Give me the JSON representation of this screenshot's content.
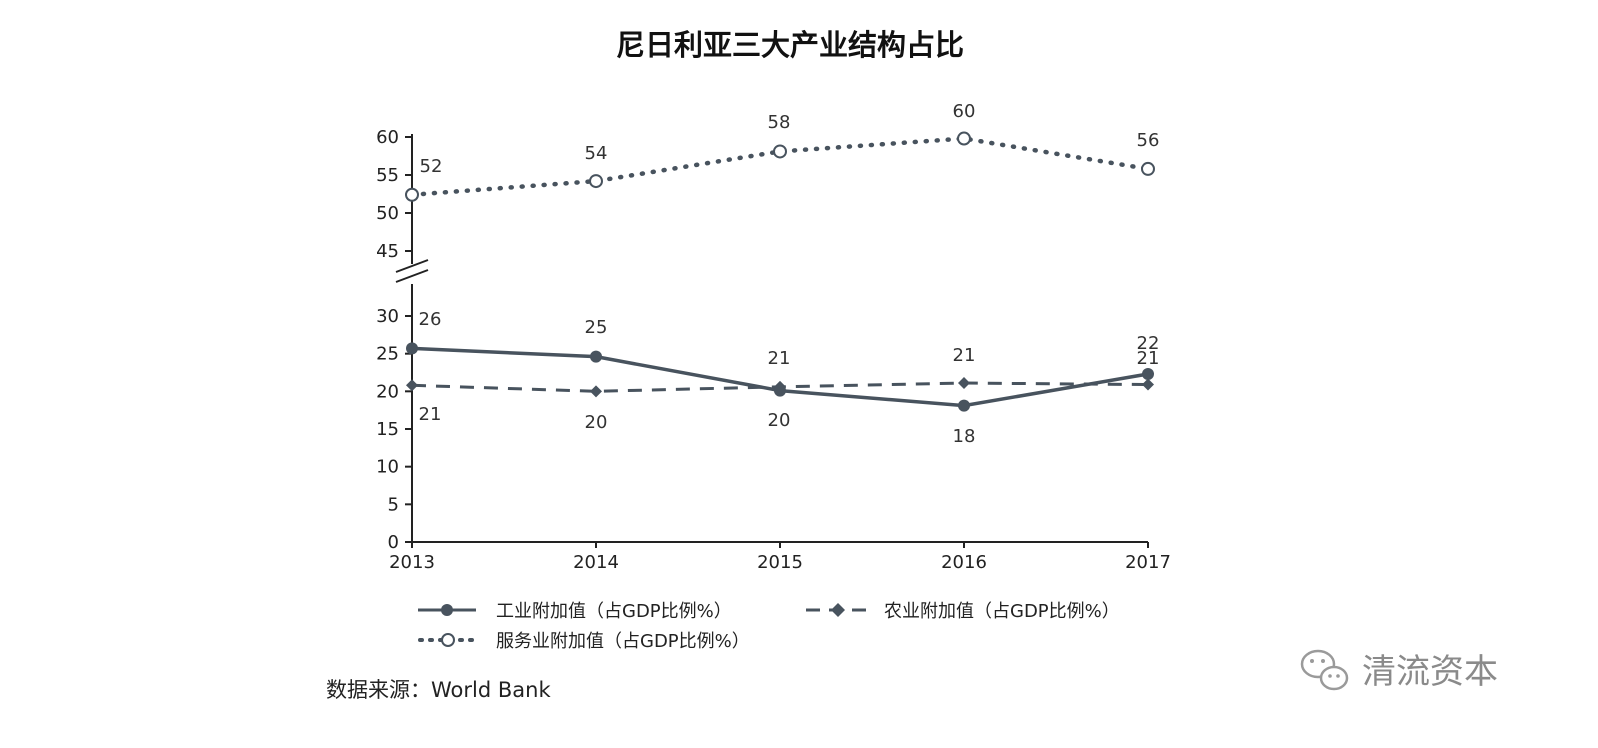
{
  "chart_data": {
    "type": "line",
    "title": "尼日利亚三大产业结构占比",
    "categories": [
      "2013",
      "2014",
      "2015",
      "2016",
      "2017"
    ],
    "y_ticks_lower": [
      0,
      5,
      10,
      15,
      20,
      25,
      30
    ],
    "y_ticks_upper": [
      45,
      50,
      55,
      60
    ],
    "axis_break": [
      30,
      45
    ],
    "ylim": [
      0,
      60
    ],
    "grid": false,
    "legend_position": "bottom",
    "series": [
      {
        "name": "工业附加值（占GDP比例%）",
        "values": [
          25.7,
          24.6,
          20.1,
          18.1,
          22.3
        ],
        "labels": [
          "26",
          "25",
          "20",
          "18",
          "22"
        ],
        "style": "solid",
        "marker": "circle",
        "color": "#48535e"
      },
      {
        "name": "农业附加值（占GDP比例%）",
        "values": [
          20.8,
          20.0,
          20.6,
          21.1,
          20.9
        ],
        "labels": [
          "21",
          "20",
          "21",
          "21",
          "21"
        ],
        "style": "dashed",
        "marker": "diamond",
        "color": "#48535e"
      },
      {
        "name": "服务业附加值（占GDP比例%）",
        "values": [
          52.4,
          54.2,
          58.1,
          59.8,
          55.8
        ],
        "labels": [
          "52",
          "54",
          "58",
          "60",
          "56"
        ],
        "style": "dotted",
        "marker": "open-circle",
        "color": "#48535e"
      }
    ],
    "source": "数据来源：World Bank"
  },
  "watermark": {
    "text": "清流资本",
    "icon": "wechat-icon"
  }
}
